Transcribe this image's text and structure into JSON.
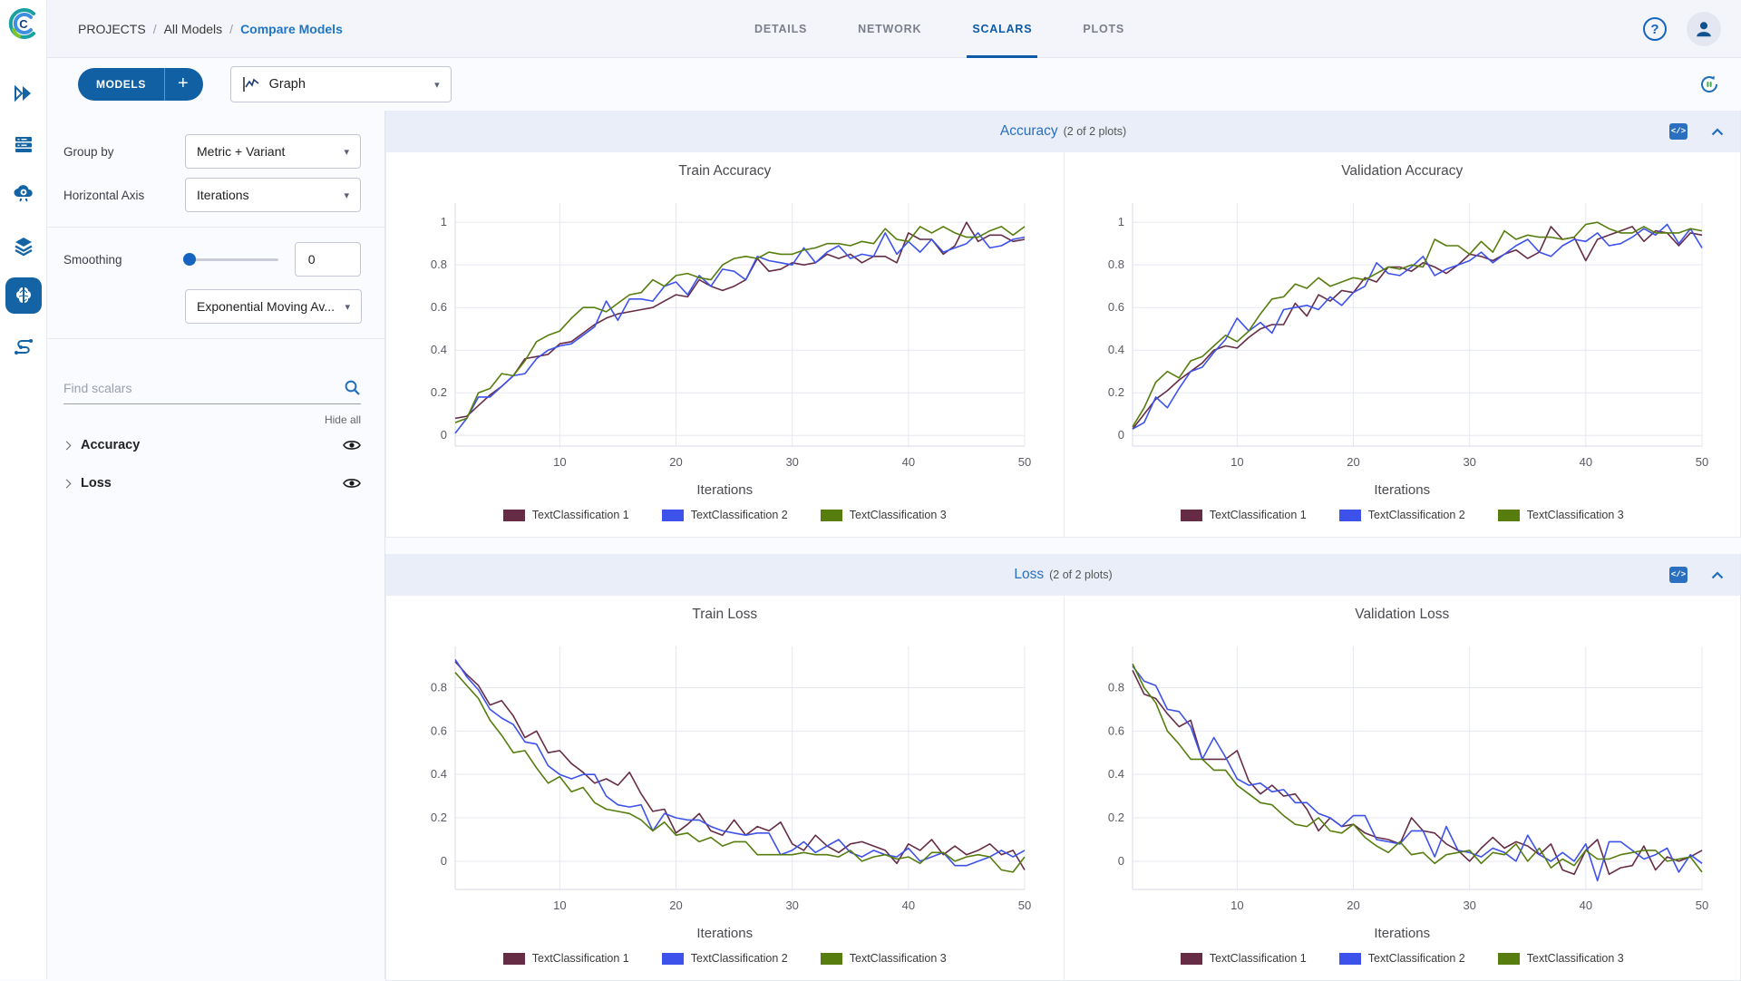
{
  "header": {
    "breadcrumb": [
      "PROJECTS",
      "All Models",
      "Compare Models"
    ],
    "separator": "/",
    "tabs": [
      {
        "label": "DETAILS",
        "active": false
      },
      {
        "label": "NETWORK",
        "active": false
      },
      {
        "label": "SCALARS",
        "active": true
      },
      {
        "label": "PLOTS",
        "active": false
      }
    ]
  },
  "toolbar": {
    "models_button": "MODELS",
    "add_button": "+",
    "view_select": "Graph"
  },
  "rail": {
    "items": [
      "projects",
      "queues",
      "workers",
      "datasets",
      "models",
      "pipelines"
    ],
    "active": "models"
  },
  "controls": {
    "group_by": {
      "label": "Group by",
      "value": "Metric + Variant"
    },
    "horizontal_axis": {
      "label": "Horizontal Axis",
      "value": "Iterations"
    },
    "smoothing": {
      "label": "Smoothing",
      "value": "0",
      "method": "Exponential Moving Av..."
    },
    "search": {
      "placeholder": "Find scalars"
    },
    "hide_all": "Hide all",
    "metrics": [
      {
        "label": "Accuracy"
      },
      {
        "label": "Loss"
      }
    ]
  },
  "sections": [
    {
      "title": "Accuracy",
      "count": "(2 of 2 plots)"
    },
    {
      "title": "Loss",
      "count": "(2 of 2 plots)"
    }
  ],
  "colors": {
    "primary": "#1160a4",
    "link": "#1f76c6",
    "active_tab": "#0d5aa8",
    "section_title": "#2a6ebf",
    "series1": "#662C46",
    "series2": "#3D52EB",
    "series3": "#567D0E"
  },
  "chart_data": [
    {
      "type": "line",
      "title": "Train Accuracy",
      "xlabel": "Iterations",
      "x_start": 1,
      "x_end": 50,
      "xticks": [
        10,
        20,
        30,
        40,
        50
      ],
      "yticks": [
        0,
        0.2,
        0.4,
        0.6,
        0.8,
        1
      ],
      "ylim": [
        -0.05,
        1.09
      ],
      "series": [
        {
          "name": "TextClassification 1",
          "color": "#662C46",
          "values": [
            0.08,
            0.09,
            0.14,
            0.19,
            0.23,
            0.28,
            0.36,
            0.37,
            0.38,
            0.43,
            0.44,
            0.48,
            0.52,
            0.55,
            0.57,
            0.58,
            0.59,
            0.6,
            0.63,
            0.66,
            0.65,
            0.73,
            0.7,
            0.68,
            0.7,
            0.73,
            0.83,
            0.77,
            0.78,
            0.81,
            0.8,
            0.81,
            0.85,
            0.83,
            0.85,
            0.81,
            0.84,
            0.84,
            0.81,
            0.95,
            0.92,
            0.92,
            0.85,
            0.89,
            1.0,
            0.91,
            0.94,
            0.94,
            0.91,
            0.92
          ]
        },
        {
          "name": "TextClassification 2",
          "color": "#3D52EB",
          "values": [
            0.01,
            0.08,
            0.18,
            0.18,
            0.23,
            0.28,
            0.29,
            0.36,
            0.4,
            0.42,
            0.43,
            0.47,
            0.51,
            0.63,
            0.54,
            0.64,
            0.64,
            0.63,
            0.7,
            0.72,
            0.66,
            0.75,
            0.7,
            0.78,
            0.77,
            0.73,
            0.84,
            0.82,
            0.81,
            0.8,
            0.88,
            0.81,
            0.86,
            0.89,
            0.83,
            0.85,
            0.84,
            0.95,
            0.85,
            0.91,
            0.86,
            0.92,
            0.86,
            0.88,
            0.9,
            0.95,
            0.88,
            0.89,
            0.92,
            0.93
          ]
        },
        {
          "name": "TextClassification 3",
          "color": "#567D0E",
          "values": [
            0.06,
            0.08,
            0.2,
            0.22,
            0.29,
            0.28,
            0.35,
            0.44,
            0.47,
            0.49,
            0.55,
            0.6,
            0.6,
            0.58,
            0.62,
            0.66,
            0.67,
            0.73,
            0.7,
            0.75,
            0.76,
            0.74,
            0.73,
            0.8,
            0.83,
            0.84,
            0.83,
            0.86,
            0.85,
            0.85,
            0.87,
            0.88,
            0.9,
            0.9,
            0.89,
            0.91,
            0.9,
            0.97,
            0.92,
            0.91,
            0.98,
            0.95,
            0.98,
            0.95,
            0.93,
            0.93,
            0.96,
            0.98,
            0.94,
            0.98
          ]
        }
      ]
    },
    {
      "type": "line",
      "title": "Validation Accuracy",
      "xlabel": "Iterations",
      "x_start": 1,
      "x_end": 50,
      "xticks": [
        10,
        20,
        30,
        40,
        50
      ],
      "yticks": [
        0,
        0.2,
        0.4,
        0.6,
        0.8,
        1
      ],
      "ylim": [
        -0.05,
        1.09
      ],
      "series": [
        {
          "name": "TextClassification 1",
          "color": "#662C46",
          "values": [
            0.03,
            0.1,
            0.17,
            0.21,
            0.26,
            0.3,
            0.34,
            0.4,
            0.42,
            0.41,
            0.46,
            0.5,
            0.52,
            0.52,
            0.62,
            0.56,
            0.66,
            0.63,
            0.68,
            0.67,
            0.74,
            0.72,
            0.79,
            0.79,
            0.77,
            0.81,
            0.79,
            0.76,
            0.8,
            0.85,
            0.84,
            0.82,
            0.85,
            0.87,
            0.83,
            0.86,
            0.98,
            0.92,
            0.93,
            0.82,
            0.92,
            0.94,
            0.96,
            0.98,
            0.91,
            0.96,
            0.95,
            0.89,
            0.95,
            0.94
          ]
        },
        {
          "name": "TextClassification 2",
          "color": "#3D52EB",
          "values": [
            0.03,
            0.06,
            0.18,
            0.13,
            0.22,
            0.3,
            0.32,
            0.39,
            0.45,
            0.55,
            0.49,
            0.53,
            0.48,
            0.59,
            0.6,
            0.61,
            0.59,
            0.65,
            0.61,
            0.67,
            0.7,
            0.81,
            0.76,
            0.75,
            0.79,
            0.84,
            0.75,
            0.78,
            0.8,
            0.82,
            0.86,
            0.81,
            0.85,
            0.89,
            0.92,
            0.86,
            0.84,
            0.89,
            0.92,
            0.91,
            0.95,
            0.89,
            0.9,
            0.93,
            0.97,
            0.94,
            0.99,
            0.9,
            0.97,
            0.88
          ]
        },
        {
          "name": "TextClassification 3",
          "color": "#567D0E",
          "values": [
            0.04,
            0.13,
            0.25,
            0.3,
            0.27,
            0.35,
            0.37,
            0.42,
            0.47,
            0.44,
            0.49,
            0.57,
            0.64,
            0.65,
            0.71,
            0.69,
            0.74,
            0.7,
            0.72,
            0.74,
            0.73,
            0.76,
            0.79,
            0.78,
            0.8,
            0.79,
            0.92,
            0.89,
            0.89,
            0.85,
            0.91,
            0.86,
            0.96,
            0.92,
            0.94,
            0.93,
            0.93,
            0.92,
            0.93,
            0.99,
            1.0,
            0.97,
            0.95,
            0.95,
            0.98,
            0.95,
            0.95,
            0.95,
            0.97,
            0.96
          ]
        }
      ]
    },
    {
      "type": "line",
      "title": "Train Loss",
      "xlabel": "Iterations",
      "x_start": 1,
      "x_end": 50,
      "xticks": [
        10,
        20,
        30,
        40,
        50
      ],
      "yticks": [
        0,
        0.2,
        0.4,
        0.6,
        0.8
      ],
      "ylim": [
        -0.13,
        0.99
      ],
      "series": [
        {
          "name": "TextClassification 1",
          "color": "#662C46",
          "values": [
            0.92,
            0.86,
            0.81,
            0.72,
            0.74,
            0.67,
            0.57,
            0.6,
            0.5,
            0.51,
            0.45,
            0.41,
            0.36,
            0.38,
            0.35,
            0.41,
            0.31,
            0.23,
            0.24,
            0.13,
            0.17,
            0.22,
            0.14,
            0.12,
            0.19,
            0.12,
            0.16,
            0.14,
            0.18,
            0.08,
            0.05,
            0.12,
            0.07,
            0.04,
            0.08,
            0.09,
            0.07,
            0.05,
            -0.01,
            0.08,
            0.05,
            0.1,
            0.03,
            0.07,
            0.03,
            0.05,
            0.08,
            0.03,
            0.05,
            -0.04
          ]
        },
        {
          "name": "TextClassification 2",
          "color": "#3D52EB",
          "values": [
            0.93,
            0.85,
            0.79,
            0.7,
            0.66,
            0.63,
            0.55,
            0.54,
            0.44,
            0.4,
            0.38,
            0.4,
            0.4,
            0.3,
            0.26,
            0.25,
            0.26,
            0.14,
            0.22,
            0.2,
            0.19,
            0.19,
            0.16,
            0.14,
            0.13,
            0.12,
            0.13,
            0.13,
            0.03,
            0.05,
            0.09,
            0.04,
            0.07,
            0.1,
            0.04,
            0.02,
            0.05,
            0.03,
            0.02,
            0.06,
            0.0,
            0.02,
            0.04,
            -0.02,
            -0.02,
            0.0,
            0.02,
            0.05,
            0.02,
            0.05
          ]
        },
        {
          "name": "TextClassification 3",
          "color": "#567D0E",
          "values": [
            0.87,
            0.81,
            0.75,
            0.65,
            0.58,
            0.5,
            0.51,
            0.43,
            0.36,
            0.39,
            0.32,
            0.34,
            0.27,
            0.24,
            0.23,
            0.22,
            0.19,
            0.14,
            0.18,
            0.12,
            0.13,
            0.09,
            0.11,
            0.07,
            0.09,
            0.09,
            0.03,
            0.03,
            0.03,
            0.03,
            0.04,
            0.03,
            0.03,
            0.02,
            0.05,
            0.0,
            0.02,
            0.03,
            0.01,
            0.02,
            -0.01,
            0.04,
            0.04,
            0.0,
            0.02,
            0.03,
            0.02,
            -0.04,
            -0.05,
            0.02
          ]
        }
      ]
    },
    {
      "type": "line",
      "title": "Validation Loss",
      "xlabel": "Iterations",
      "x_start": 1,
      "x_end": 50,
      "xticks": [
        10,
        20,
        30,
        40,
        50
      ],
      "yticks": [
        0,
        0.2,
        0.4,
        0.6,
        0.8
      ],
      "ylim": [
        -0.13,
        0.99
      ],
      "series": [
        {
          "name": "TextClassification 1",
          "color": "#662C46",
          "values": [
            0.88,
            0.77,
            0.75,
            0.68,
            0.62,
            0.65,
            0.47,
            0.47,
            0.47,
            0.51,
            0.37,
            0.31,
            0.35,
            0.3,
            0.31,
            0.24,
            0.14,
            0.2,
            0.16,
            0.17,
            0.13,
            0.11,
            0.1,
            0.08,
            0.2,
            0.14,
            0.13,
            0.08,
            0.05,
            0.0,
            0.06,
            0.11,
            0.06,
            0.09,
            0.07,
            0.03,
            0.08,
            -0.04,
            -0.06,
            0.05,
            0.1,
            -0.06,
            -0.03,
            -0.02,
            0.07,
            -0.04,
            0.02,
            0.0,
            0.02,
            0.05
          ]
        },
        {
          "name": "TextClassification 2",
          "color": "#3D52EB",
          "values": [
            0.9,
            0.83,
            0.81,
            0.7,
            0.69,
            0.62,
            0.47,
            0.57,
            0.48,
            0.38,
            0.35,
            0.36,
            0.32,
            0.33,
            0.27,
            0.27,
            0.22,
            0.2,
            0.16,
            0.21,
            0.21,
            0.1,
            0.09,
            0.08,
            0.14,
            0.14,
            0.02,
            0.16,
            0.05,
            0.04,
            0.02,
            0.06,
            0.04,
            0.0,
            0.12,
            0.03,
            0.0,
            0.04,
            0.0,
            0.08,
            -0.09,
            0.09,
            0.09,
            0.05,
            0.01,
            0.03,
            0.06,
            -0.05,
            0.03,
            -0.01
          ]
        },
        {
          "name": "TextClassification 3",
          "color": "#567D0E",
          "values": [
            0.91,
            0.8,
            0.73,
            0.6,
            0.54,
            0.47,
            0.47,
            0.42,
            0.42,
            0.35,
            0.31,
            0.27,
            0.26,
            0.21,
            0.17,
            0.16,
            0.2,
            0.14,
            0.13,
            0.17,
            0.11,
            0.07,
            0.04,
            0.09,
            0.03,
            0.04,
            -0.01,
            0.03,
            0.04,
            0.05,
            -0.01,
            0.04,
            0.03,
            0.08,
            0.0,
            0.06,
            -0.03,
            0.01,
            -0.02,
            0.05,
            0.01,
            0.01,
            0.03,
            0.04,
            0.05,
            0.05,
            0.0,
            0.01,
            0.02,
            -0.05
          ]
        }
      ]
    }
  ]
}
